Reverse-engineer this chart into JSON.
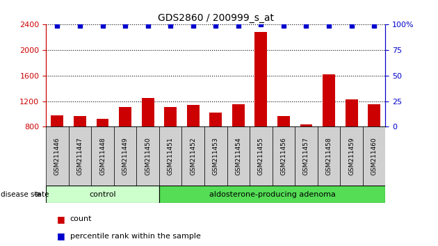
{
  "title": "GDS2860 / 200999_s_at",
  "samples": [
    "GSM211446",
    "GSM211447",
    "GSM211448",
    "GSM211449",
    "GSM211450",
    "GSM211451",
    "GSM211452",
    "GSM211453",
    "GSM211454",
    "GSM211455",
    "GSM211456",
    "GSM211457",
    "GSM211458",
    "GSM211459",
    "GSM211460"
  ],
  "counts": [
    980,
    970,
    920,
    1110,
    1250,
    1110,
    1140,
    1020,
    1155,
    2280,
    970,
    840,
    1620,
    1230,
    1150
  ],
  "percentiles": [
    99,
    99,
    99,
    99,
    99,
    99,
    99,
    99,
    99,
    100,
    99,
    99,
    99,
    99,
    99
  ],
  "bar_color": "#cc0000",
  "dot_color": "#0000cc",
  "ylim_left": [
    800,
    2400
  ],
  "ylim_right": [
    0,
    100
  ],
  "yticks_left": [
    800,
    1200,
    1600,
    2000,
    2400
  ],
  "yticks_right": [
    0,
    25,
    50,
    75,
    100
  ],
  "groups": [
    {
      "label": "control",
      "start": 0,
      "end": 5,
      "color": "#ccffcc"
    },
    {
      "label": "aldosterone-producing adenoma",
      "start": 5,
      "end": 15,
      "color": "#55dd55"
    }
  ],
  "disease_state_label": "disease state",
  "legend_count_label": "count",
  "legend_percentile_label": "percentile rank within the sample",
  "bar_bottom": 800,
  "grid_color": "#000000",
  "sample_box_color": "#d0d0d0",
  "left_axis_color": "#cc0000",
  "right_axis_color": "#0000cc"
}
